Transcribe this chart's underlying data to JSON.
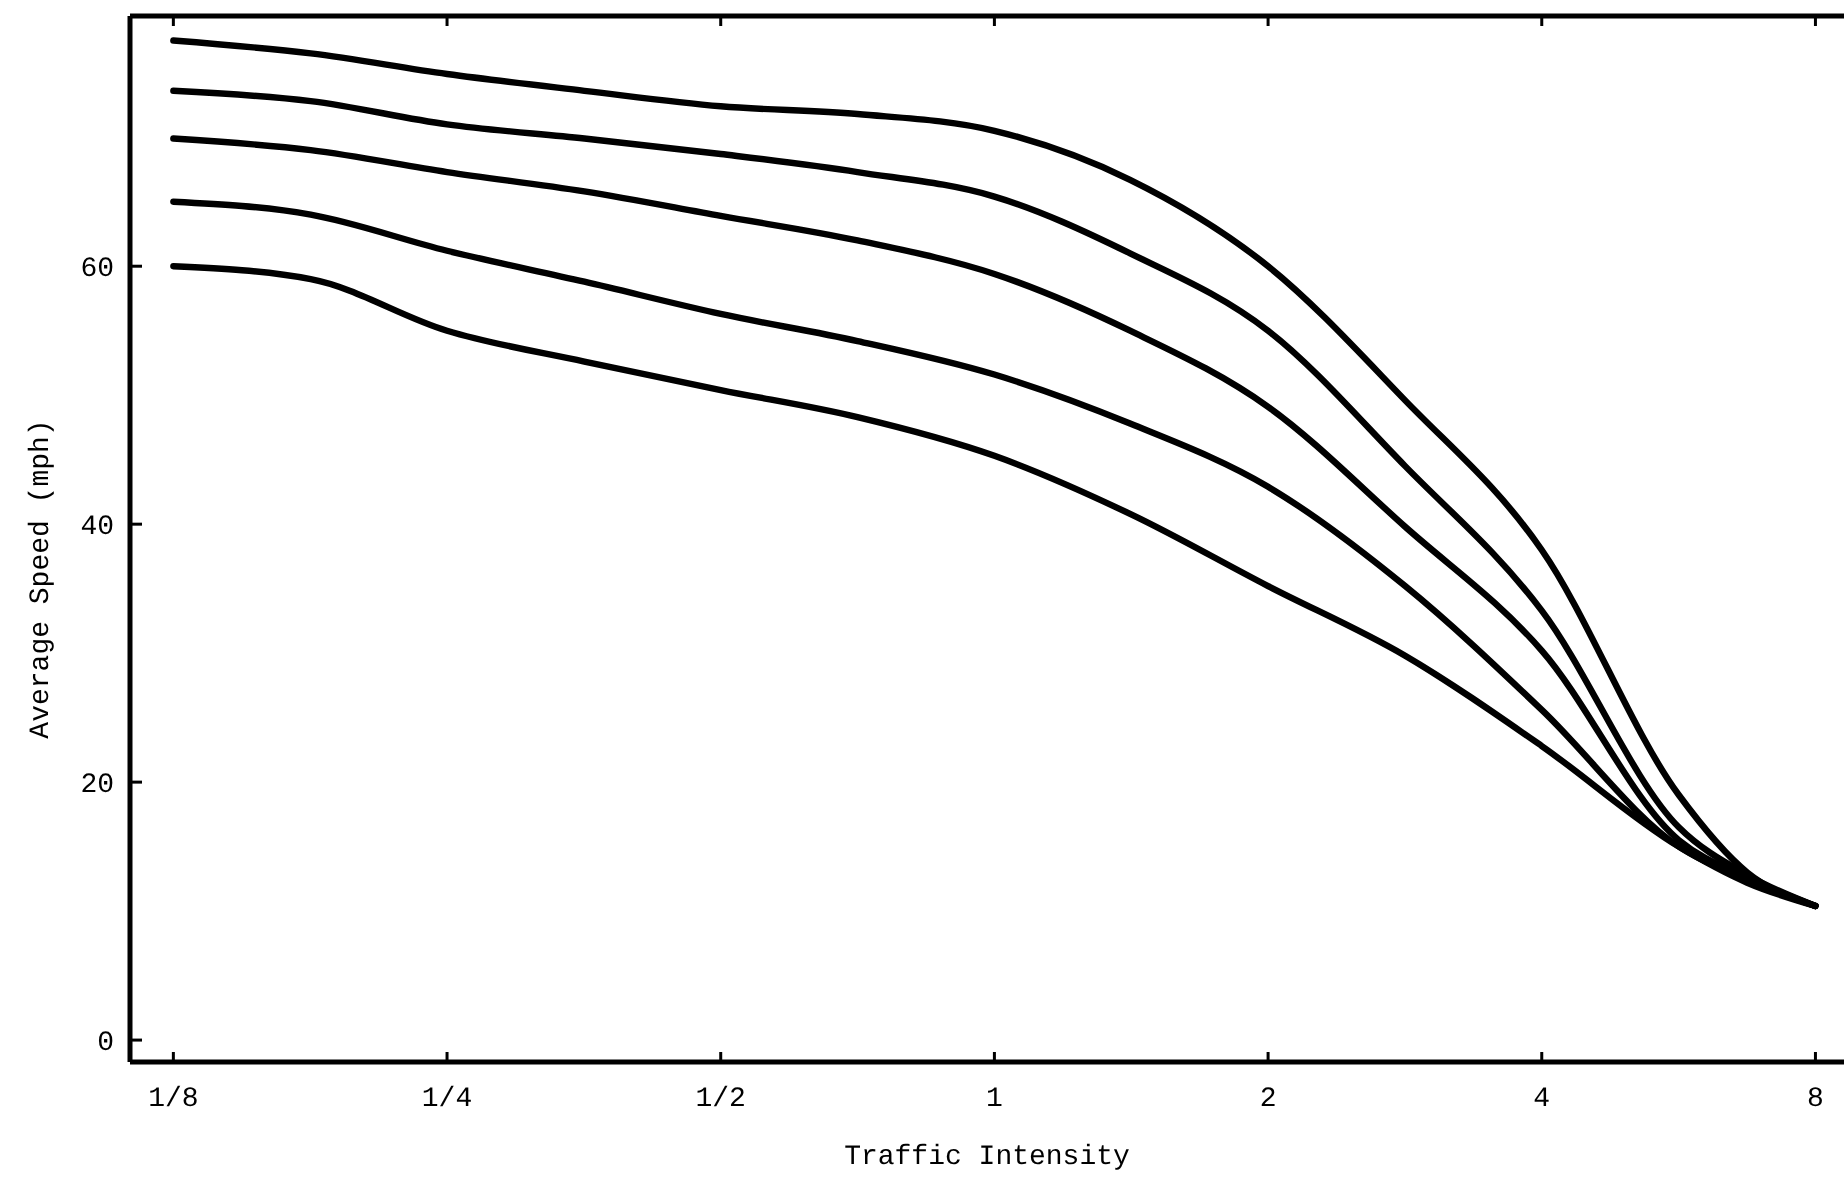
{
  "chart_data": {
    "type": "line",
    "xlabel": "Traffic Intensity",
    "ylabel": "Average Speed (mph)",
    "log": "x",
    "x": [
      0.125,
      0.177,
      0.25,
      0.354,
      0.5,
      0.707,
      1,
      1.41,
      2,
      2.83,
      4,
      5.66,
      6.73,
      8
    ],
    "xlim": [
      0.112,
      8.6
    ],
    "ylim": [
      -1.7,
      79.4
    ],
    "xticks": [
      {
        "value": 0.125,
        "label": "1/8"
      },
      {
        "value": 0.25,
        "label": "1/4"
      },
      {
        "value": 0.5,
        "label": "1/2"
      },
      1,
      2,
      4,
      8
    ],
    "yticks": [
      0,
      20,
      40,
      60
    ],
    "series": [
      {
        "color": "#000000",
        "values": [
          77.5,
          76.5,
          74.9,
          73.6,
          72.4,
          71.8,
          70.5,
          66.7,
          60,
          49.6,
          38,
          19,
          13,
          10.4
        ]
      },
      {
        "color": "#000000",
        "values": [
          73.6,
          72.8,
          71,
          69.9,
          68.7,
          67.3,
          65.4,
          61,
          55,
          44.5,
          33.3,
          16.5,
          12.8,
          10.4
        ]
      },
      {
        "color": "#000000",
        "values": [
          69.9,
          69,
          67.3,
          65.8,
          63.9,
          62,
          59.4,
          55,
          49.1,
          39.8,
          30.2,
          15.5,
          12.6,
          10.4
        ]
      },
      {
        "color": "#000000",
        "values": [
          65,
          64,
          61.2,
          58.8,
          56.3,
          54.2,
          51.6,
          47.8,
          42.9,
          35.2,
          25.6,
          15,
          12.4,
          10.4
        ]
      },
      {
        "color": "#000000",
        "values": [
          60,
          59,
          55,
          52.6,
          50.4,
          48.3,
          45.3,
          40.8,
          35.2,
          29.8,
          22.8,
          15,
          12.2,
          10.4
        ]
      }
    ]
  }
}
